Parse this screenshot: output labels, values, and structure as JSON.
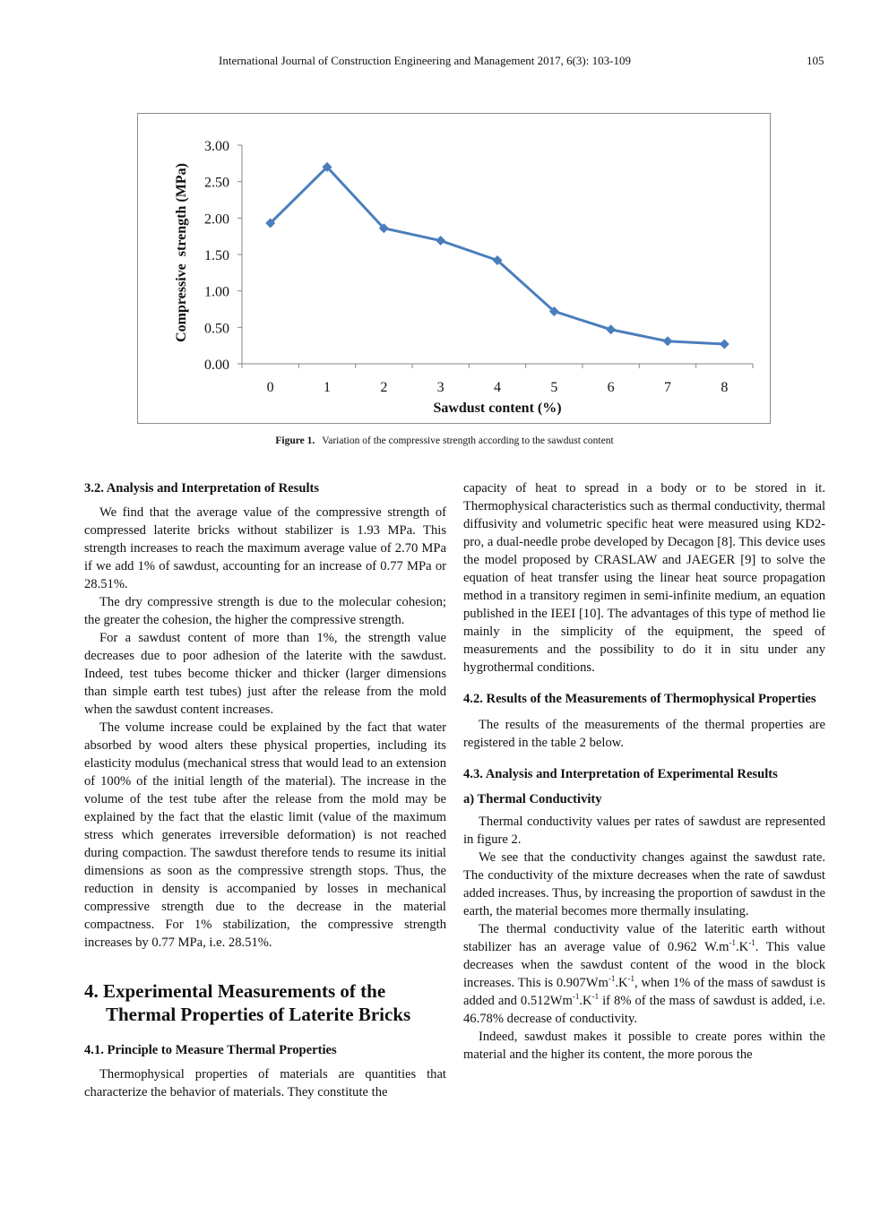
{
  "header": {
    "journal": "International Journal of Construction Engineering and Management 2017, 6(3): 103-109",
    "page_number": "105"
  },
  "figure": {
    "label": "Figure 1.",
    "caption": "Variation of the compressive strength according to the sawdust content"
  },
  "chart_data": {
    "type": "line",
    "xlabel": "Sawdust content (%)",
    "ylabel": "Compressive  strength (MPa)",
    "x": [
      0,
      1,
      2,
      3,
      4,
      5,
      6,
      7,
      8
    ],
    "y_ticks": [
      "0.00",
      "0.50",
      "1.00",
      "1.50",
      "2.00",
      "2.50",
      "3.00"
    ],
    "ylim": [
      0,
      3
    ],
    "series": [
      {
        "values": [
          1.93,
          2.7,
          1.86,
          1.69,
          1.42,
          0.72,
          0.47,
          0.31,
          0.27
        ]
      }
    ],
    "line_color": "#4a7ebb",
    "grid": false
  },
  "left_column": {
    "h_3_2": "3.2. Analysis and Interpretation of Results",
    "p1": "We find that the average value of the compressive strength of compressed laterite bricks without stabilizer is 1.93 MPa. This strength increases to reach the maximum average value of 2.70 MPa if we add 1% of sawdust, accounting for an increase of 0.77 MPa or 28.51%.",
    "p2": "The dry compressive strength is due to the molecular cohesion; the greater the cohesion, the higher the compressive strength.",
    "p3": "For a sawdust content of more than 1%, the strength value decreases due to poor adhesion of the laterite with the sawdust. Indeed, test tubes become thicker and thicker (larger dimensions than simple earth test tubes) just after the release from the mold when the sawdust content increases.",
    "p4": "The volume increase could be explained by the fact that water absorbed by wood alters these physical properties, including its elasticity modulus (mechanical stress that would lead to an extension of 100% of the initial length of the material). The increase in the volume of the test tube after the release from the mold may be explained by the fact that the elastic limit (value of the maximum stress which generates irreversible deformation) is not reached during compaction. The sawdust therefore tends to resume its initial dimensions as soon as the compressive strength stops. Thus, the reduction in density is accompanied by losses in mechanical compressive strength due to the decrease in the material compactness. For 1% stabilization, the compressive strength increases by 0.77 MPa, i.e. 28.51%.",
    "h_4": "4. Experimental Measurements of the Thermal Properties of Laterite Bricks",
    "h_4_1": "4.1. Principle to Measure Thermal Properties",
    "p5": "Thermophysical properties of materials are quantities that characterize the behavior of materials. They constitute the"
  },
  "right_column": {
    "p1": "capacity of heat to spread in a body or to be stored in it. Thermophysical characteristics such as thermal conductivity, thermal diffusivity and volumetric specific heat were measured using KD2-pro, a dual-needle probe developed by Decagon [8]. This device uses the model proposed by CRASLAW and JAEGER [9] to solve the equation of heat transfer using the linear heat source propagation method in a transitory regimen in semi-infinite medium, an equation published in the IEEI [10]. The advantages of this type of method lie mainly in the simplicity of the equipment, the speed of measurements and the possibility to do it in situ under any hygrothermal conditions.",
    "h_4_2": "4.2. Results of the Measurements of Thermophysical Properties",
    "p2": "The results of the measurements of the thermal properties are registered in the table 2 below.",
    "h_4_3": "4.3. Analysis and Interpretation of Experimental Results",
    "h_a": "a) Thermal Conductivity",
    "p3": "Thermal conductivity values per rates of sawdust are represented in figure 2.",
    "p4": "We see that the conductivity changes against the sawdust rate. The conductivity of the mixture decreases when the rate of sawdust added increases. Thus, by increasing the proportion of sawdust in the earth, the material becomes more thermally insulating.",
    "p5_a": "The thermal conductivity value of the lateritic earth without stabilizer has an average value of 0.962 W.m",
    "p5_b": ".K",
    "p5_c": ". This value decreases when the sawdust content of the wood in the block increases. This is 0.907Wm",
    "p5_d": ".K",
    "p5_e": ", when 1% of the mass of sawdust is added and 0.512Wm",
    "p5_f": ".K",
    "p5_g": " if 8% of the mass of sawdust is added, i.e. 46.78% decrease of conductivity.",
    "sup": "-1",
    "p6": "Indeed, sawdust makes it possible to create pores within the material and the higher its content, the more porous the"
  }
}
